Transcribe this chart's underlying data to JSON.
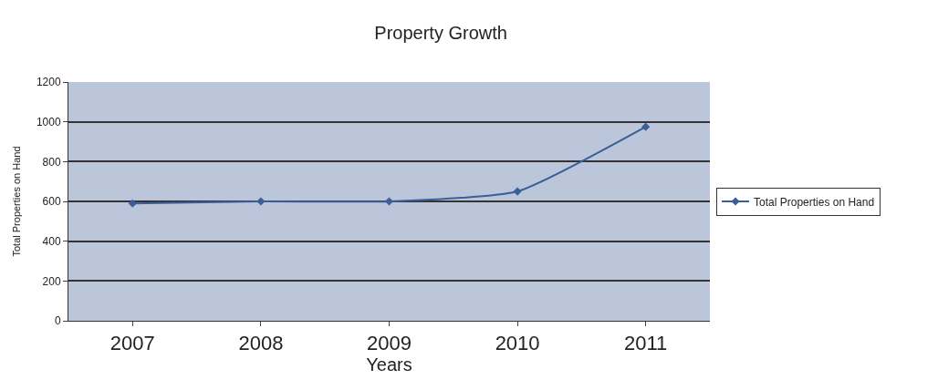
{
  "chart_data": {
    "type": "line",
    "title": "Property Growth",
    "xlabel": "Years",
    "ylabel": "Total Properties on Hand",
    "categories": [
      "2007",
      "2008",
      "2009",
      "2010",
      "2011"
    ],
    "series": [
      {
        "name": "Total Properties on Hand",
        "color": "#3b5e99",
        "values": [
          590,
          600,
          600,
          650,
          975
        ]
      }
    ],
    "ylim": [
      0,
      1200
    ],
    "yticks": [
      0,
      200,
      400,
      600,
      800,
      1000,
      1200
    ],
    "grid": "y",
    "legend": "right",
    "marker": "diamond",
    "line_style": "solid"
  }
}
